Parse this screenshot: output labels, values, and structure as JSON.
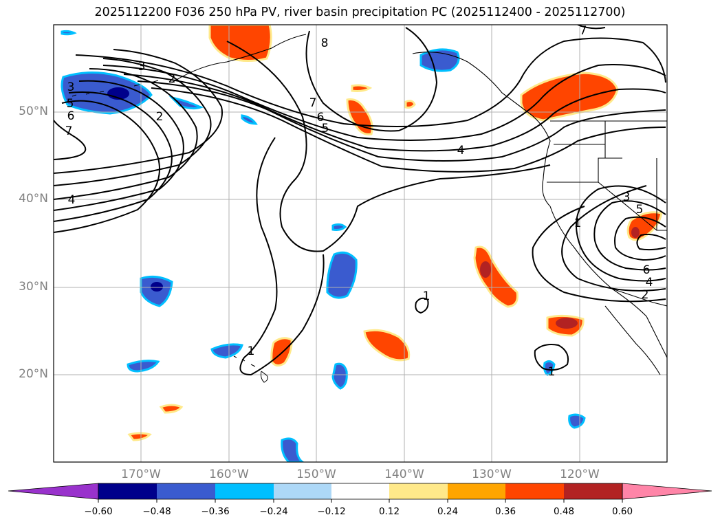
{
  "title": "2025112200 F036 250 hPa PV, river basin precipitation PC (2025112400 - 2025112700)",
  "lat_labels": [
    "50°N",
    "40°N",
    "30°N",
    "20°N"
  ],
  "lon_labels": [
    "170°W",
    "160°W",
    "150°W",
    "140°W",
    "130°W",
    "120°W"
  ],
  "contour_labels": [
    "3",
    "3",
    "5",
    "6",
    "7",
    "2",
    "2",
    "4",
    "8",
    "7",
    "6",
    "5",
    "4",
    "7",
    "3",
    "5",
    "1",
    "6",
    "4",
    "2",
    "1",
    "1",
    "1"
  ],
  "colorbar": {
    "ticks": [
      "−0.60",
      "−0.48",
      "−0.36",
      "−0.24",
      "−0.12",
      "0.12",
      "0.24",
      "0.36",
      "0.48",
      "0.60"
    ],
    "colors": [
      "#9932cc",
      "#00008b",
      "#3a5bcf",
      "#00bfff",
      "#add8f7",
      "#ffffff",
      "#ffe98a",
      "#ffa500",
      "#ff4500",
      "#b22222",
      "#ff85a8"
    ]
  },
  "colors": {
    "contour": "#000000",
    "grid": "#b0b0b0",
    "coast": "#000000",
    "text_axis": "#808080"
  }
}
